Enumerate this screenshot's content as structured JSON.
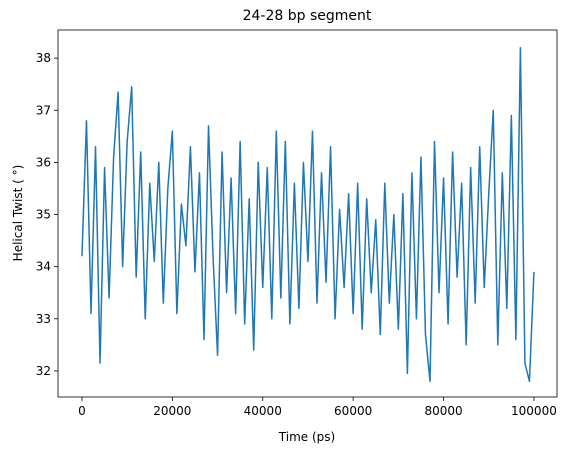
{
  "chart_data": {
    "type": "line",
    "title": "24-28 bp segment",
    "x_label": "Time (ps)",
    "y_label": "Helical Twist ( °)",
    "x": [
      0,
      1000,
      2000,
      3000,
      4000,
      5000,
      6000,
      7000,
      8000,
      9000,
      10000,
      11000,
      12000,
      13000,
      14000,
      15000,
      16000,
      17000,
      18000,
      19000,
      20000,
      21000,
      22000,
      23000,
      24000,
      25000,
      26000,
      27000,
      28000,
      29000,
      30000,
      31000,
      32000,
      33000,
      34000,
      35000,
      36000,
      37000,
      38000,
      39000,
      40000,
      41000,
      42000,
      43000,
      44000,
      45000,
      46000,
      47000,
      48000,
      49000,
      50000,
      51000,
      52000,
      53000,
      54000,
      55000,
      56000,
      57000,
      58000,
      59000,
      60000,
      61000,
      62000,
      63000,
      64000,
      65000,
      66000,
      67000,
      68000,
      69000,
      70000,
      71000,
      72000,
      73000,
      74000,
      75000,
      76000,
      77000,
      78000,
      79000,
      80000,
      81000,
      82000,
      83000,
      84000,
      85000,
      86000,
      87000,
      88000,
      89000,
      90000,
      91000,
      92000,
      93000,
      94000,
      95000,
      96000,
      97000,
      98000,
      99000,
      100000
    ],
    "series": [
      {
        "name": "Helical Twist",
        "color": "#1f77b4",
        "values": [
          34.2,
          36.8,
          33.1,
          36.3,
          32.15,
          35.9,
          33.4,
          36.1,
          37.35,
          34.0,
          36.4,
          37.45,
          33.8,
          36.2,
          33.0,
          35.6,
          34.1,
          36.0,
          33.3,
          35.5,
          36.6,
          33.1,
          35.2,
          34.4,
          36.3,
          33.9,
          35.8,
          32.6,
          36.7,
          34.2,
          32.3,
          36.2,
          33.5,
          35.7,
          33.1,
          36.4,
          32.9,
          35.3,
          32.4,
          36.0,
          33.6,
          35.9,
          33.0,
          36.6,
          33.4,
          36.4,
          32.9,
          35.6,
          33.2,
          36.0,
          34.1,
          36.6,
          33.3,
          35.8,
          33.7,
          36.3,
          33.0,
          35.1,
          33.6,
          35.4,
          33.1,
          35.6,
          32.8,
          35.3,
          33.5,
          34.9,
          32.7,
          35.6,
          33.3,
          35.0,
          32.8,
          35.4,
          31.95,
          35.8,
          33.0,
          36.1,
          32.7,
          31.8,
          36.4,
          33.5,
          35.7,
          32.9,
          36.2,
          33.8,
          35.6,
          32.5,
          35.9,
          33.3,
          36.3,
          33.6,
          35.4,
          37.0,
          32.5,
          35.8,
          33.2,
          36.9,
          32.6,
          38.2,
          32.15,
          31.8,
          33.9
        ]
      }
    ],
    "xlim": [
      -5300,
      105100
    ],
    "ylim": [
      31.5,
      38.54
    ],
    "xticks": [
      0,
      20000,
      40000,
      60000,
      80000,
      100000
    ],
    "yticks": [
      32,
      33,
      34,
      35,
      36,
      37,
      38
    ]
  }
}
